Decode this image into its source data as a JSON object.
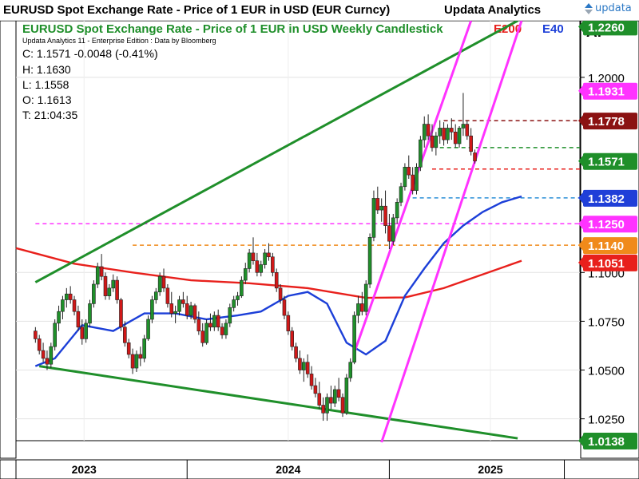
{
  "header": {
    "title": "EURUSD Spot Exchange Rate - Price of 1 EUR in USD (EUR Curncy)",
    "brand": "Updata Analytics",
    "logo_text": "updata"
  },
  "chart_data": {
    "type": "candlestick",
    "title": "EURUSD Spot Exchange Rate - Price of 1 EUR in USD Weekly Candlestick",
    "subtitle": "Updata Analytics 11 - Enterprise Edition : Data by Bloomberg",
    "axis_unit": "Ar",
    "legend": [
      {
        "name": "E200",
        "color": "#e8201c"
      },
      {
        "name": "E40",
        "color": "#1c3fd8"
      }
    ],
    "readout": {
      "C": "C: 1.1571  -0.0048 (-0.41%)",
      "H": "H: 1.1630",
      "L": "L: 1.1558",
      "O": "O: 1.1613",
      "T": "T: 21:04:35"
    },
    "ylim": [
      1.0138,
      1.229
    ],
    "y_ticks": [
      1.025,
      1.05,
      1.075,
      1.1,
      1.2
    ],
    "y_tick_labels": [
      "1.0250",
      "1.0500",
      "1.0750",
      "1.1000",
      "1.2000"
    ],
    "x_labels": [
      {
        "label": "2023",
        "week": 12.5
      },
      {
        "label": "2024",
        "week": 65
      },
      {
        "label": "2025",
        "week": 117
      }
    ],
    "x_range": [
      -5,
      140
    ],
    "price_badges": [
      {
        "label": "1.2260",
        "value": 1.226,
        "bg": "#1f8f2a",
        "color": "#ffffff"
      },
      {
        "label": "1.1931",
        "value": 1.1931,
        "bg": "#ff33ff",
        "color": "#ffffff"
      },
      {
        "label": "1.1778",
        "value": 1.1778,
        "bg": "#8b1212",
        "color": "#ffffff"
      },
      {
        "label": "1.1571",
        "value": 1.1571,
        "bg": "#1f8f2a",
        "color": "#ffffff"
      },
      {
        "label": "1.1382",
        "value": 1.1382,
        "bg": "#1f3fd8",
        "color": "#ffffff"
      },
      {
        "label": "1.1250",
        "value": 1.125,
        "bg": "#ff33ff",
        "color": "#ffffff"
      },
      {
        "label": "1.1140",
        "value": 1.114,
        "bg": "#f08a1a",
        "color": "#ffffff"
      },
      {
        "label": "1.1051",
        "value": 1.1051,
        "bg": "#e8201c",
        "color": "#ffffff"
      },
      {
        "label": "1.0138",
        "value": 1.0138,
        "bg": "#1f8f2a",
        "color": "#ffffff"
      }
    ],
    "hlines": [
      {
        "value": 1.1778,
        "from_week": 105,
        "color": "#8b1212"
      },
      {
        "value": 1.164,
        "from_week": 104,
        "color": "#1f8f2a"
      },
      {
        "value": 1.153,
        "from_week": 102,
        "color": "#e8201c"
      },
      {
        "value": 1.1382,
        "from_week": 97,
        "color": "#2b8fd6"
      },
      {
        "value": 1.125,
        "from_week": 0,
        "color": "#ff33ff"
      },
      {
        "value": 1.114,
        "from_week": 25,
        "color": "#f08a1a"
      }
    ],
    "trendlines": [
      {
        "name": "channel-upper",
        "color": "#1f8f2a",
        "from": [
          0,
          1.095
        ],
        "to": [
          124,
          1.229
        ]
      },
      {
        "name": "channel-lower",
        "color": "#1f8f2a",
        "from": [
          1,
          1.052
        ],
        "to": [
          124,
          1.015
        ]
      },
      {
        "name": "uptrend-left",
        "color": "#ff33ff",
        "from": [
          82,
          1.059
        ],
        "to": [
          112,
          1.229
        ]
      },
      {
        "name": "uptrend-right",
        "color": "#ff33ff",
        "from": [
          89,
          1.013
        ],
        "to": [
          125,
          1.229
        ]
      }
    ],
    "series": [
      {
        "name": "E200",
        "color": "#e8201c",
        "x": [
          -5,
          10,
          25,
          40,
          55,
          70,
          85,
          95,
          105,
          115,
          125
        ],
        "values": [
          1.1125,
          1.1045,
          1.1,
          1.096,
          1.0945,
          1.092,
          1.087,
          1.0872,
          1.092,
          1.099,
          1.106
        ]
      },
      {
        "name": "E40",
        "color": "#1c3fd8",
        "x": [
          0,
          5,
          12,
          20,
          28,
          36,
          44,
          52,
          58,
          65,
          70,
          75,
          80,
          85,
          90,
          95,
          100,
          105,
          110,
          115,
          120,
          125
        ],
        "values": [
          1.052,
          1.056,
          1.073,
          1.07,
          1.079,
          1.079,
          1.076,
          1.078,
          1.08,
          1.088,
          1.09,
          1.084,
          1.064,
          1.058,
          1.065,
          1.088,
          1.102,
          1.115,
          1.124,
          1.131,
          1.136,
          1.139
        ]
      }
    ],
    "candles": [
      [
        1.07,
        1.072,
        1.064,
        1.066
      ],
      [
        1.066,
        1.068,
        1.058,
        1.06
      ],
      [
        1.06,
        1.064,
        1.054,
        1.056
      ],
      [
        1.056,
        1.06,
        1.05,
        1.053
      ],
      [
        1.053,
        1.064,
        1.051,
        1.062
      ],
      [
        1.062,
        1.076,
        1.06,
        1.074
      ],
      [
        1.074,
        1.083,
        1.07,
        1.08
      ],
      [
        1.08,
        1.088,
        1.076,
        1.086
      ],
      [
        1.086,
        1.092,
        1.082,
        1.089
      ],
      [
        1.089,
        1.093,
        1.084,
        1.086
      ],
      [
        1.086,
        1.088,
        1.078,
        1.08
      ],
      [
        1.08,
        1.083,
        1.07,
        1.072
      ],
      [
        1.072,
        1.076,
        1.063,
        1.066
      ],
      [
        1.066,
        1.076,
        1.064,
        1.074
      ],
      [
        1.074,
        1.086,
        1.072,
        1.084
      ],
      [
        1.084,
        1.096,
        1.082,
        1.094
      ],
      [
        1.094,
        1.105,
        1.092,
        1.103
      ],
      [
        1.103,
        1.1095,
        1.096,
        1.098
      ],
      [
        1.098,
        1.1,
        1.086,
        1.088
      ],
      [
        1.088,
        1.094,
        1.086,
        1.092
      ],
      [
        1.092,
        1.099,
        1.09,
        1.096
      ],
      [
        1.096,
        1.098,
        1.084,
        1.086
      ],
      [
        1.086,
        1.087,
        1.07,
        1.072
      ],
      [
        1.072,
        1.075,
        1.062,
        1.064
      ],
      [
        1.064,
        1.066,
        1.056,
        1.058
      ],
      [
        1.058,
        1.061,
        1.048,
        1.051
      ],
      [
        1.051,
        1.06,
        1.049,
        1.058
      ],
      [
        1.058,
        1.062,
        1.052,
        1.056
      ],
      [
        1.056,
        1.068,
        1.054,
        1.066
      ],
      [
        1.066,
        1.078,
        1.065,
        1.076
      ],
      [
        1.076,
        1.088,
        1.074,
        1.086
      ],
      [
        1.086,
        1.092,
        1.084,
        1.09
      ],
      [
        1.09,
        1.1,
        1.088,
        1.098
      ],
      [
        1.098,
        1.102,
        1.09,
        1.092
      ],
      [
        1.092,
        1.094,
        1.082,
        1.084
      ],
      [
        1.084,
        1.09,
        1.077,
        1.079
      ],
      [
        1.079,
        1.083,
        1.074,
        1.08
      ],
      [
        1.08,
        1.088,
        1.078,
        1.086
      ],
      [
        1.086,
        1.09,
        1.082,
        1.084
      ],
      [
        1.084,
        1.088,
        1.076,
        1.078
      ],
      [
        1.078,
        1.085,
        1.076,
        1.083
      ],
      [
        1.083,
        1.084,
        1.074,
        1.076
      ],
      [
        1.076,
        1.08,
        1.068,
        1.07
      ],
      [
        1.07,
        1.074,
        1.062,
        1.064
      ],
      [
        1.064,
        1.076,
        1.063,
        1.074
      ],
      [
        1.074,
        1.079,
        1.07,
        1.072
      ],
      [
        1.072,
        1.08,
        1.07,
        1.078
      ],
      [
        1.078,
        1.081,
        1.07,
        1.072
      ],
      [
        1.072,
        1.074,
        1.066,
        1.068
      ],
      [
        1.068,
        1.076,
        1.066,
        1.074
      ],
      [
        1.074,
        1.084,
        1.072,
        1.082
      ],
      [
        1.082,
        1.088,
        1.08,
        1.086
      ],
      [
        1.086,
        1.09,
        1.083,
        1.088
      ],
      [
        1.088,
        1.098,
        1.087,
        1.096
      ],
      [
        1.096,
        1.105,
        1.094,
        1.102
      ],
      [
        1.102,
        1.112,
        1.1,
        1.11
      ],
      [
        1.11,
        1.118,
        1.104,
        1.106
      ],
      [
        1.106,
        1.11,
        1.098,
        1.1
      ],
      [
        1.1,
        1.106,
        1.098,
        1.104
      ],
      [
        1.104,
        1.112,
        1.102,
        1.11
      ],
      [
        1.11,
        1.115,
        1.106,
        1.108
      ],
      [
        1.108,
        1.11,
        1.098,
        1.1
      ],
      [
        1.1,
        1.102,
        1.09,
        1.092
      ],
      [
        1.092,
        1.094,
        1.084,
        1.086
      ],
      [
        1.086,
        1.088,
        1.076,
        1.078
      ],
      [
        1.078,
        1.08,
        1.068,
        1.07
      ],
      [
        1.07,
        1.072,
        1.06,
        1.062
      ],
      [
        1.062,
        1.064,
        1.054,
        1.056
      ],
      [
        1.056,
        1.06,
        1.048,
        1.05
      ],
      [
        1.05,
        1.056,
        1.044,
        1.054
      ],
      [
        1.054,
        1.058,
        1.046,
        1.048
      ],
      [
        1.048,
        1.052,
        1.04,
        1.042
      ],
      [
        1.042,
        1.046,
        1.036,
        1.038
      ],
      [
        1.038,
        1.044,
        1.03,
        1.032
      ],
      [
        1.032,
        1.036,
        1.024,
        1.028
      ],
      [
        1.028,
        1.038,
        1.024,
        1.036
      ],
      [
        1.036,
        1.042,
        1.03,
        1.033
      ],
      [
        1.033,
        1.042,
        1.031,
        1.04
      ],
      [
        1.04,
        1.046,
        1.034,
        1.036
      ],
      [
        1.036,
        1.038,
        1.026,
        1.028
      ],
      [
        1.028,
        1.048,
        1.027,
        1.046
      ],
      [
        1.046,
        1.056,
        1.044,
        1.054
      ],
      [
        1.054,
        1.08,
        1.053,
        1.078
      ],
      [
        1.078,
        1.088,
        1.074,
        1.084
      ],
      [
        1.084,
        1.09,
        1.078,
        1.08
      ],
      [
        1.08,
        1.096,
        1.078,
        1.094
      ],
      [
        1.094,
        1.12,
        1.092,
        1.118
      ],
      [
        1.118,
        1.142,
        1.116,
        1.138
      ],
      [
        1.138,
        1.144,
        1.13,
        1.132
      ],
      [
        1.132,
        1.138,
        1.126,
        1.134
      ],
      [
        1.134,
        1.142,
        1.12,
        1.124
      ],
      [
        1.124,
        1.13,
        1.112,
        1.116
      ],
      [
        1.116,
        1.13,
        1.114,
        1.128
      ],
      [
        1.128,
        1.138,
        1.125,
        1.136
      ],
      [
        1.136,
        1.146,
        1.134,
        1.144
      ],
      [
        1.144,
        1.156,
        1.142,
        1.154
      ],
      [
        1.154,
        1.16,
        1.148,
        1.15
      ],
      [
        1.15,
        1.154,
        1.14,
        1.142
      ],
      [
        1.142,
        1.156,
        1.14,
        1.154
      ],
      [
        1.154,
        1.17,
        1.152,
        1.168
      ],
      [
        1.168,
        1.18,
        1.164,
        1.176
      ],
      [
        1.176,
        1.181,
        1.168,
        1.17
      ],
      [
        1.17,
        1.176,
        1.162,
        1.164
      ],
      [
        1.164,
        1.172,
        1.16,
        1.17
      ],
      [
        1.17,
        1.178,
        1.166,
        1.174
      ],
      [
        1.174,
        1.177,
        1.165,
        1.168
      ],
      [
        1.168,
        1.176,
        1.166,
        1.174
      ],
      [
        1.174,
        1.179,
        1.168,
        1.172
      ],
      [
        1.172,
        1.176,
        1.164,
        1.166
      ],
      [
        1.166,
        1.175,
        1.164,
        1.174
      ],
      [
        1.174,
        1.192,
        1.17,
        1.176
      ],
      [
        1.176,
        1.178,
        1.168,
        1.17
      ],
      [
        1.17,
        1.174,
        1.16,
        1.162
      ],
      [
        1.1613,
        1.163,
        1.1558,
        1.1571
      ]
    ]
  }
}
